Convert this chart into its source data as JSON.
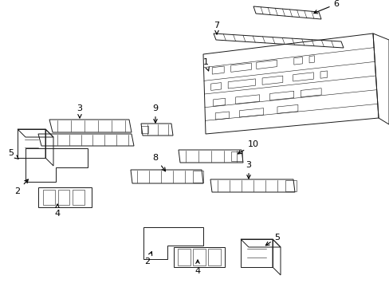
{
  "bg": "#ffffff",
  "lc": "#1a1a1a",
  "tc": "#000000",
  "fig_w": 4.89,
  "fig_h": 3.6,
  "dpi": 100
}
